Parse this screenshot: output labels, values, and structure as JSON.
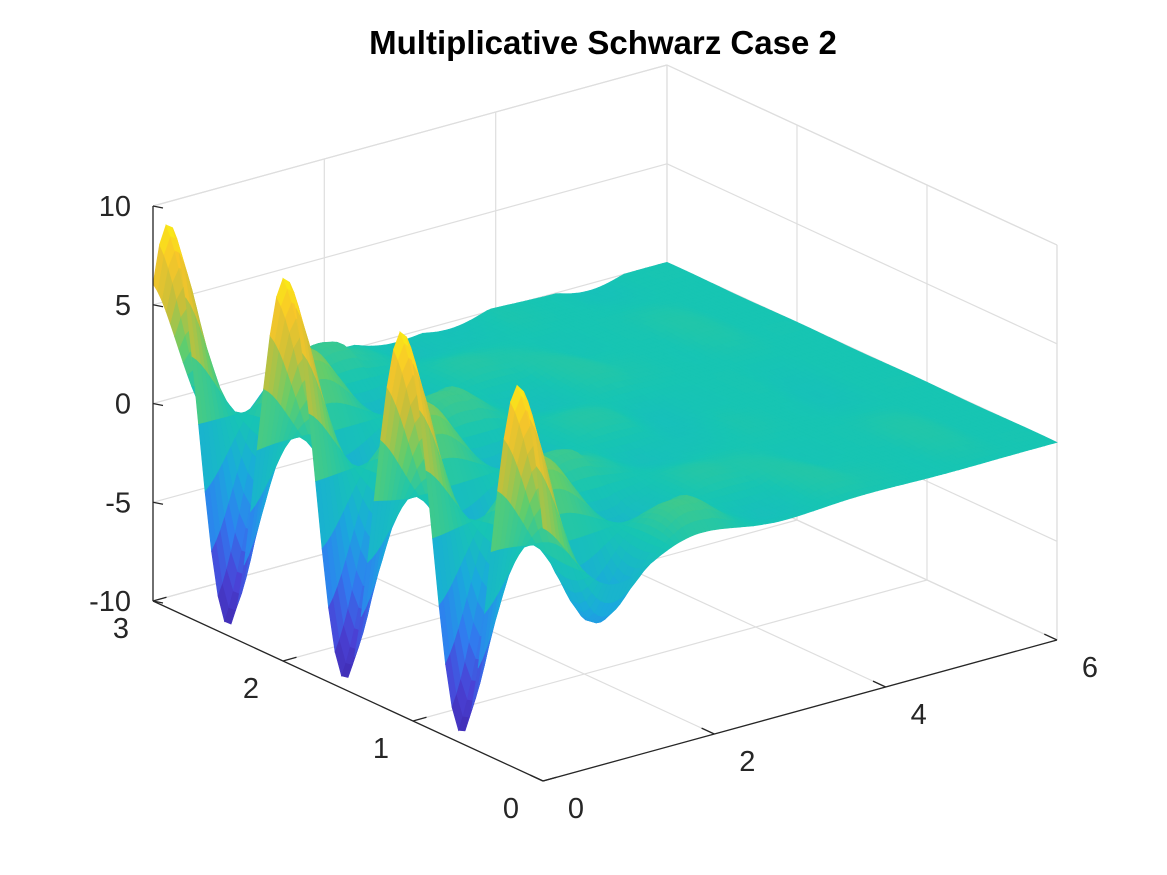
{
  "chart_data": {
    "type": "surface",
    "title": "Multiplicative Schwarz Case 2",
    "xlabel": "",
    "ylabel": "",
    "zlabel": "",
    "xlim": [
      0,
      6
    ],
    "ylim": [
      0,
      3
    ],
    "zlim": [
      -10,
      10
    ],
    "xticks": [
      "0",
      "2",
      "4",
      "6"
    ],
    "yticks": [
      "0",
      "1",
      "2",
      "3"
    ],
    "zticks": [
      "-10",
      "-5",
      "0",
      "5",
      "10"
    ],
    "grid": true,
    "colormap": "parula",
    "colormap_stops": [
      "#3e26a8",
      "#4a42d6",
      "#2f7ff0",
      "#1aaadc",
      "#17c5b3",
      "#60cd6d",
      "#c6bf3a",
      "#f9c629",
      "#f9fb0e"
    ],
    "surface_description_points": [
      {
        "x": 0,
        "y": 3.0,
        "z": 9.1
      },
      {
        "x": 0,
        "y": 2.5,
        "z": 9.6
      },
      {
        "x": 0.5,
        "y": 2.5,
        "z": 6.5
      },
      {
        "x": 0.5,
        "y": 2.0,
        "z": 6.3
      },
      {
        "x": 1.0,
        "y": 2.0,
        "z": 3.4
      },
      {
        "x": 1.5,
        "y": 1.5,
        "z": 1.8
      },
      {
        "x": 2.5,
        "y": 0.5,
        "z": 0.6
      },
      {
        "x": 6,
        "y": 0,
        "z": 0.3
      },
      {
        "x": 0,
        "y": 3.0,
        "z": -8.9
      },
      {
        "x": 0.5,
        "y": 2.5,
        "z": -7.7
      }
    ]
  }
}
